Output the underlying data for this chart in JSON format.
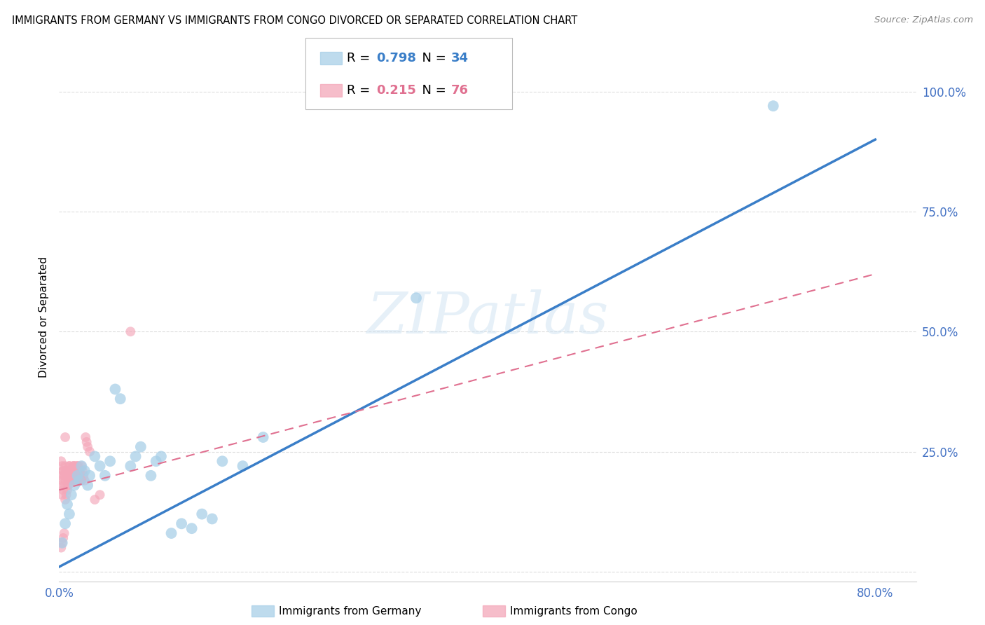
{
  "title": "IMMIGRANTS FROM GERMANY VS IMMIGRANTS FROM CONGO DIVORCED OR SEPARATED CORRELATION CHART",
  "source": "Source: ZipAtlas.com",
  "ylabel": "Divorced or Separated",
  "xlim": [
    0.0,
    0.84
  ],
  "ylim": [
    -0.02,
    1.08
  ],
  "xticks": [
    0.0,
    0.2,
    0.4,
    0.6,
    0.8
  ],
  "xtick_labels": [
    "0.0%",
    "",
    "",
    "",
    "80.0%"
  ],
  "yticks": [
    0.0,
    0.25,
    0.5,
    0.75,
    1.0
  ],
  "ytick_labels": [
    "",
    "25.0%",
    "50.0%",
    "75.0%",
    "100.0%"
  ],
  "germany_color": "#a8cfe8",
  "congo_color": "#f4a7b9",
  "germany_line_color": "#3a7ec8",
  "congo_line_color": "#e07090",
  "watermark": "ZIPatlas",
  "legend_germany_R": "0.798",
  "legend_germany_N": "34",
  "legend_congo_R": "0.215",
  "legend_congo_N": "76",
  "germany_scatter_x": [
    0.003,
    0.006,
    0.008,
    0.01,
    0.012,
    0.015,
    0.018,
    0.02,
    0.022,
    0.025,
    0.028,
    0.03,
    0.035,
    0.04,
    0.045,
    0.05,
    0.055,
    0.06,
    0.07,
    0.075,
    0.08,
    0.09,
    0.095,
    0.1,
    0.11,
    0.12,
    0.13,
    0.14,
    0.15,
    0.16,
    0.18,
    0.2,
    0.35,
    0.7
  ],
  "germany_scatter_y": [
    0.06,
    0.1,
    0.14,
    0.12,
    0.16,
    0.18,
    0.2,
    0.19,
    0.22,
    0.21,
    0.18,
    0.2,
    0.24,
    0.22,
    0.2,
    0.23,
    0.38,
    0.36,
    0.22,
    0.24,
    0.26,
    0.2,
    0.23,
    0.24,
    0.08,
    0.1,
    0.09,
    0.12,
    0.11,
    0.23,
    0.22,
    0.28,
    0.57,
    0.97
  ],
  "congo_scatter_x": [
    0.001,
    0.002,
    0.003,
    0.004,
    0.005,
    0.006,
    0.007,
    0.008,
    0.009,
    0.01,
    0.011,
    0.012,
    0.013,
    0.014,
    0.015,
    0.016,
    0.017,
    0.018,
    0.019,
    0.02,
    0.021,
    0.022,
    0.002,
    0.003,
    0.004,
    0.005,
    0.006,
    0.007,
    0.008,
    0.009,
    0.01,
    0.011,
    0.012,
    0.013,
    0.014,
    0.015,
    0.016,
    0.017,
    0.018,
    0.019,
    0.02,
    0.003,
    0.004,
    0.005,
    0.006,
    0.007,
    0.008,
    0.009,
    0.01,
    0.011,
    0.012,
    0.013,
    0.014,
    0.015,
    0.016,
    0.017,
    0.018,
    0.019,
    0.02,
    0.021,
    0.022,
    0.023,
    0.024,
    0.025,
    0.026,
    0.027,
    0.028,
    0.03,
    0.035,
    0.04,
    0.002,
    0.003,
    0.004,
    0.005,
    0.006,
    0.07
  ],
  "congo_scatter_y": [
    0.18,
    0.2,
    0.19,
    0.21,
    0.2,
    0.19,
    0.21,
    0.2,
    0.18,
    0.22,
    0.21,
    0.2,
    0.19,
    0.22,
    0.2,
    0.21,
    0.19,
    0.2,
    0.22,
    0.21,
    0.2,
    0.19,
    0.23,
    0.22,
    0.21,
    0.2,
    0.22,
    0.21,
    0.2,
    0.19,
    0.22,
    0.21,
    0.2,
    0.19,
    0.22,
    0.21,
    0.2,
    0.22,
    0.21,
    0.2,
    0.19,
    0.16,
    0.17,
    0.18,
    0.15,
    0.16,
    0.17,
    0.18,
    0.19,
    0.2,
    0.21,
    0.2,
    0.19,
    0.22,
    0.21,
    0.2,
    0.22,
    0.21,
    0.2,
    0.19,
    0.22,
    0.21,
    0.2,
    0.19,
    0.28,
    0.27,
    0.26,
    0.25,
    0.15,
    0.16,
    0.05,
    0.06,
    0.07,
    0.08,
    0.28,
    0.5
  ],
  "germany_line_x0": 0.0,
  "germany_line_y0": 0.01,
  "germany_line_x1": 0.8,
  "germany_line_y1": 0.9,
  "congo_line_x0": 0.0,
  "congo_line_y0": 0.17,
  "congo_line_x1": 0.8,
  "congo_line_y1": 0.62,
  "background_color": "#ffffff",
  "grid_color": "#dddddd",
  "tick_color": "#4472c4"
}
